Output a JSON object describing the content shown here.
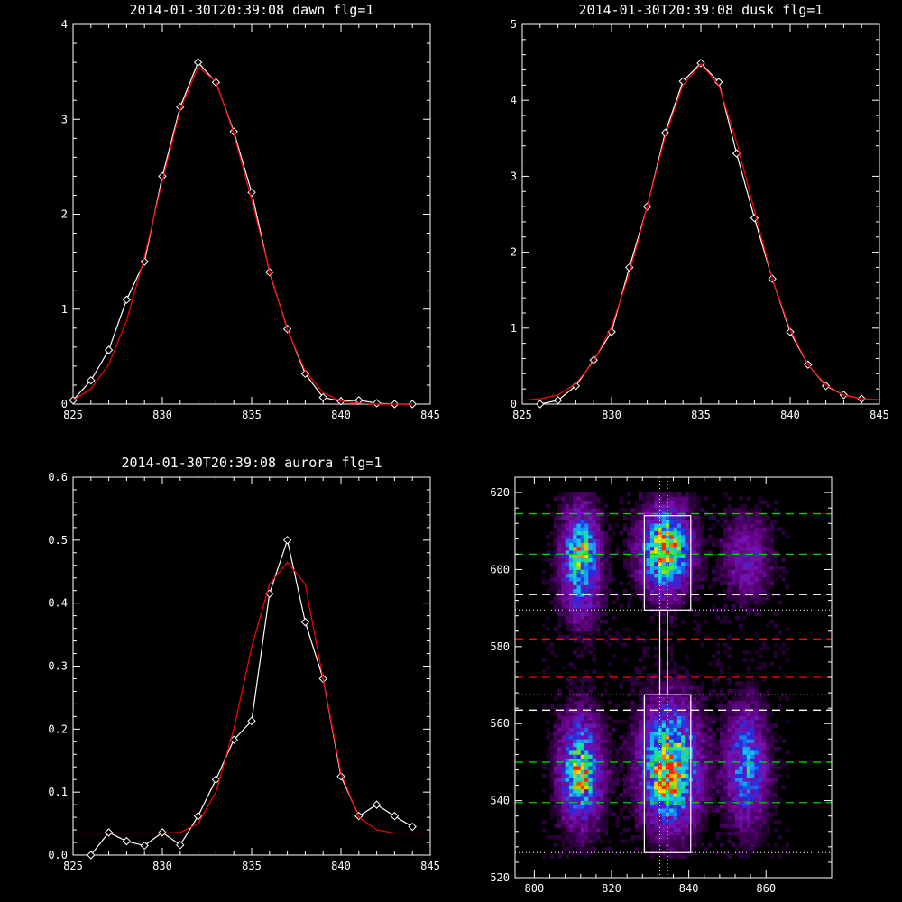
{
  "chart_data": [
    {
      "id": "dawn",
      "type": "line",
      "title": "2014-01-30T20:39:08 dawn flg=1",
      "xlim": [
        825,
        845
      ],
      "ylim": [
        0,
        4
      ],
      "xticks": [
        825,
        830,
        835,
        840,
        845
      ],
      "yticks": [
        0,
        1,
        2,
        3,
        4
      ],
      "series": [
        {
          "kind": "observed",
          "color": "#ffffff",
          "x": [
            825,
            826,
            827,
            828,
            829,
            830,
            831,
            832,
            833,
            834,
            835,
            836,
            837,
            838,
            839,
            840,
            841,
            842,
            843,
            844
          ],
          "y": [
            0.04,
            0.25,
            0.57,
            1.1,
            1.5,
            2.4,
            3.13,
            3.6,
            3.39,
            2.87,
            2.23,
            1.39,
            0.79,
            0.32,
            0.07,
            0.03,
            0.04,
            0.01,
            0.0,
            0.0
          ]
        },
        {
          "kind": "fit",
          "color": "#ff0000",
          "x": [
            825,
            826,
            827,
            828,
            829,
            830,
            831,
            832,
            833,
            834,
            835,
            836,
            837,
            838,
            839,
            840,
            841,
            842,
            843,
            844
          ],
          "y": [
            0.04,
            0.16,
            0.42,
            0.88,
            1.55,
            2.35,
            3.1,
            3.55,
            3.4,
            2.85,
            2.15,
            1.4,
            0.78,
            0.35,
            0.12,
            0.03,
            0.01,
            0.0,
            0.0,
            0.0
          ]
        }
      ]
    },
    {
      "id": "dusk",
      "type": "line",
      "title": "2014-01-30T20:39:08 dusk flg=1",
      "xlim": [
        825,
        845
      ],
      "ylim": [
        0,
        5
      ],
      "xticks": [
        825,
        830,
        835,
        840,
        845
      ],
      "yticks": [
        0,
        1,
        2,
        3,
        4,
        5
      ],
      "series": [
        {
          "kind": "observed",
          "color": "#ffffff",
          "x": [
            826,
            827,
            828,
            829,
            830,
            831,
            832,
            833,
            834,
            835,
            836,
            837,
            838,
            839,
            840,
            841,
            842,
            843,
            844
          ],
          "y": [
            0.0,
            0.05,
            0.24,
            0.58,
            0.95,
            1.8,
            2.6,
            3.57,
            4.25,
            4.49,
            4.24,
            3.3,
            2.45,
            1.65,
            0.95,
            0.52,
            0.24,
            0.12,
            0.07
          ]
        },
        {
          "kind": "fit",
          "color": "#ff0000",
          "x": [
            825,
            826,
            827,
            828,
            829,
            830,
            831,
            832,
            833,
            834,
            835,
            836,
            837,
            838,
            839,
            840,
            841,
            842,
            843,
            844,
            845
          ],
          "y": [
            0.05,
            0.07,
            0.12,
            0.27,
            0.56,
            1.02,
            1.72,
            2.6,
            3.52,
            4.2,
            4.48,
            4.2,
            3.45,
            2.55,
            1.65,
            0.98,
            0.52,
            0.25,
            0.12,
            0.07,
            0.06
          ]
        }
      ]
    },
    {
      "id": "aurora",
      "type": "line",
      "title": "2014-01-30T20:39:08 aurora flg=1",
      "xlim": [
        825,
        845
      ],
      "ylim": [
        0,
        0.6
      ],
      "xticks": [
        825,
        830,
        835,
        840,
        845
      ],
      "yticks": [
        0.0,
        0.1,
        0.2,
        0.3,
        0.4,
        0.5,
        0.6
      ],
      "ytick_labels": [
        "0.0",
        "0.1",
        "0.2",
        "0.3",
        "0.4",
        "0.5",
        "0.6"
      ],
      "series": [
        {
          "kind": "observed",
          "color": "#ffffff",
          "x": [
            826,
            827,
            828,
            829,
            830,
            831,
            832,
            833,
            834,
            835,
            836,
            837,
            838,
            839,
            840,
            841,
            842,
            843,
            844
          ],
          "y": [
            0.0,
            0.036,
            0.022,
            0.015,
            0.036,
            0.016,
            0.062,
            0.12,
            0.183,
            0.213,
            0.415,
            0.5,
            0.37,
            0.28,
            0.125,
            0.062,
            0.08,
            0.062,
            0.045
          ]
        },
        {
          "kind": "fit",
          "color": "#ff0000",
          "x": [
            825,
            826,
            827,
            828,
            829,
            830,
            831,
            832,
            833,
            834,
            835,
            836,
            837,
            838,
            839,
            840,
            841,
            842,
            843,
            844,
            845
          ],
          "y": [
            0.035,
            0.035,
            0.035,
            0.035,
            0.035,
            0.035,
            0.036,
            0.05,
            0.1,
            0.2,
            0.33,
            0.43,
            0.465,
            0.43,
            0.28,
            0.13,
            0.06,
            0.04,
            0.035,
            0.035,
            0.035
          ]
        }
      ]
    },
    {
      "id": "image",
      "type": "heatmap",
      "xlim": [
        795,
        877
      ],
      "ylim": [
        520,
        624
      ],
      "xticks": [
        800,
        820,
        840,
        860
      ],
      "yticks": [
        520,
        540,
        560,
        580,
        600,
        620
      ],
      "colorscale": [
        "#000000",
        "#5a007a",
        "#7a10b0",
        "#1e2ee0",
        "#1aa0ff",
        "#10e0d0",
        "#30e040",
        "#ffe000",
        "#ff2000"
      ],
      "blobs": [
        {
          "x": 812,
          "y": 602,
          "sx": 3.2,
          "sy": 9,
          "amp": 0.62
        },
        {
          "x": 812,
          "y": 606,
          "sx": 1.8,
          "sy": 2.5,
          "amp": 0.25
        },
        {
          "x": 812,
          "y": 548,
          "sx": 3.5,
          "sy": 9,
          "amp": 0.64
        },
        {
          "x": 812,
          "y": 546,
          "sx": 2.0,
          "sy": 3.0,
          "amp": 0.22
        },
        {
          "x": 834,
          "y": 605,
          "sx": 4.2,
          "sy": 7,
          "amp": 0.78
        },
        {
          "x": 834,
          "y": 607,
          "sx": 2.0,
          "sy": 2.0,
          "amp": 0.3
        },
        {
          "x": 835,
          "y": 549,
          "sx": 4.8,
          "sy": 10,
          "amp": 0.8
        },
        {
          "x": 835,
          "y": 545,
          "sx": 2.2,
          "sy": 2.5,
          "amp": 0.3
        },
        {
          "x": 855,
          "y": 549,
          "sx": 3.5,
          "sy": 10,
          "amp": 0.45
        },
        {
          "x": 855,
          "y": 603,
          "sx": 3.8,
          "sy": 7,
          "amp": 0.25
        }
      ],
      "horizontal_lines": [
        {
          "y": 614.5,
          "color": "#00d000",
          "style": "dashed"
        },
        {
          "y": 604,
          "color": "#00d000",
          "style": "dashed"
        },
        {
          "y": 593.5,
          "color": "#ffffff",
          "style": "dashed"
        },
        {
          "y": 589.5,
          "color": "#ffffff",
          "style": "dotted"
        },
        {
          "y": 582,
          "color": "#ff0000",
          "style": "dashed"
        },
        {
          "y": 572,
          "color": "#ff0000",
          "style": "dashed"
        },
        {
          "y": 567.5,
          "color": "#ffffff",
          "style": "dotted"
        },
        {
          "y": 563.5,
          "color": "#ffffff",
          "style": "dashed"
        },
        {
          "y": 550,
          "color": "#00d000",
          "style": "dashed"
        },
        {
          "y": 539.5,
          "color": "#00d000",
          "style": "dashed"
        },
        {
          "y": 526.5,
          "color": "#ffffff",
          "style": "dotted"
        }
      ],
      "vertical_lines": [
        {
          "x": 832.5,
          "color": "#ffffff",
          "style": "dotted"
        },
        {
          "x": 834.5,
          "color": "#ffffff",
          "style": "dotted"
        }
      ],
      "boxes": [
        {
          "x": [
            828.5,
            840.5
          ],
          "y": [
            589.5,
            614
          ]
        },
        {
          "x": [
            828.5,
            840.5
          ],
          "y": [
            526.5,
            567.5
          ]
        }
      ],
      "connector": {
        "x": [
          832.5,
          834.5
        ],
        "y": [
          567.5,
          589.5
        ]
      }
    }
  ]
}
